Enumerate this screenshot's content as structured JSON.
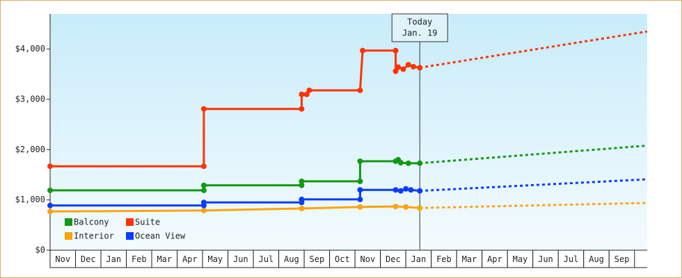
{
  "chart_data": {
    "type": "line",
    "categories": [
      "Nov",
      "Dec",
      "Jan",
      "Feb",
      "Mar",
      "Apr",
      "May",
      "Jun",
      "Jul",
      "Aug",
      "Sep",
      "Oct",
      "Nov",
      "Dec",
      "Jan",
      "Feb",
      "Mar",
      "Apr",
      "May",
      "Jun",
      "Jul",
      "Aug",
      "Sep"
    ],
    "xlim": [
      0,
      23.5
    ],
    "ylim": [
      0,
      4700
    ],
    "yticks": [
      {
        "value": 0,
        "label": "$0"
      },
      {
        "value": 1000,
        "label": "$1,000"
      },
      {
        "value": 2000,
        "label": "$2,000"
      },
      {
        "value": 3000,
        "label": "$3,000"
      },
      {
        "value": 4000,
        "label": "$4,000"
      }
    ],
    "annotation": {
      "x": 14.55,
      "lines": [
        "Today",
        "Jan. 19"
      ]
    },
    "series": [
      {
        "name": "Balcony",
        "color": "#139a13",
        "x": [
          0,
          6.05,
          6.05,
          9.9,
          9.9,
          12.2,
          12.2,
          13.6,
          13.7,
          13.8,
          14.1,
          14.55
        ],
        "values": [
          1190,
          1190,
          1290,
          1290,
          1370,
          1370,
          1770,
          1770,
          1800,
          1740,
          1730,
          1730
        ],
        "forecast": {
          "x": [
            14.55,
            23.5
          ],
          "values": [
            1730,
            2080
          ]
        }
      },
      {
        "name": "Suite",
        "color": "#ff3300",
        "x": [
          0,
          6.05,
          6.05,
          9.9,
          9.9,
          10.1,
          10.2,
          12.2,
          12.3,
          13.6,
          13.6,
          13.7,
          13.9,
          14.1,
          14.3,
          14.55
        ],
        "values": [
          1670,
          1670,
          2810,
          2810,
          3100,
          3100,
          3180,
          3180,
          3970,
          3970,
          3560,
          3640,
          3600,
          3690,
          3650,
          3630
        ],
        "forecast": {
          "x": [
            14.55,
            23.5
          ],
          "values": [
            3630,
            4350
          ]
        }
      },
      {
        "name": "Interior",
        "color": "#ffa20a",
        "x": [
          0,
          6.05,
          9.9,
          12.2,
          13.6,
          14.0,
          14.55
        ],
        "values": [
          770,
          790,
          830,
          860,
          870,
          860,
          840
        ],
        "forecast": {
          "x": [
            14.55,
            23.5
          ],
          "values": [
            840,
            940
          ]
        }
      },
      {
        "name": "Ocean View",
        "color": "#0a3cff",
        "x": [
          0,
          6.05,
          6.05,
          9.9,
          9.9,
          12.2,
          12.2,
          13.6,
          13.8,
          14.0,
          14.2,
          14.55
        ],
        "values": [
          890,
          890,
          950,
          950,
          1010,
          1010,
          1200,
          1200,
          1180,
          1220,
          1200,
          1180
        ],
        "forecast": {
          "x": [
            14.55,
            23.5
          ],
          "values": [
            1180,
            1410
          ]
        }
      }
    ]
  }
}
